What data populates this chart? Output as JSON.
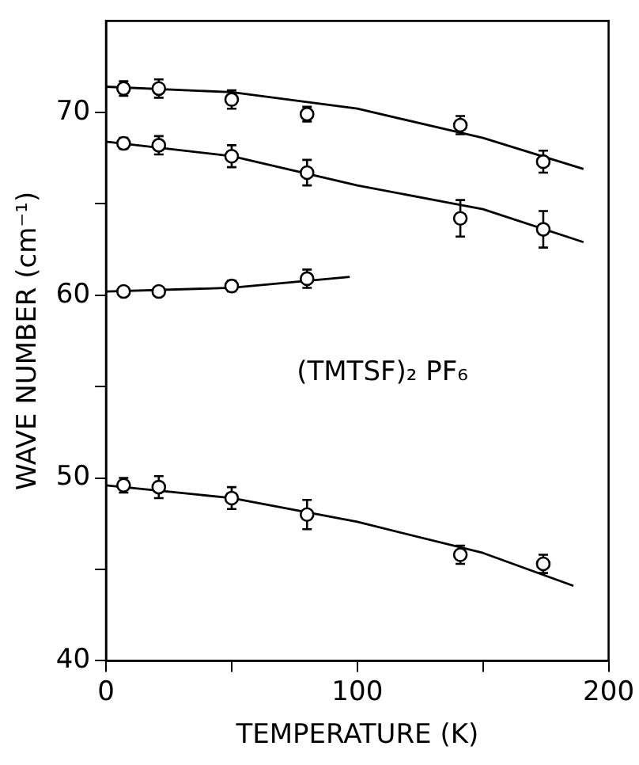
{
  "chart_data": {
    "type": "scatter",
    "xlabel": "TEMPERATURE (K)",
    "ylabel": "WAVE NUMBER (cm⁻¹)",
    "annotations": [
      "(TMTSF)₂ PF₆"
    ],
    "xlim": [
      0,
      200
    ],
    "xticks": [
      0,
      {
        "value": 50,
        "label": null
      },
      100,
      {
        "value": 150,
        "label": null
      },
      200
    ],
    "ylim": [
      40,
      75
    ],
    "yticks": [
      40,
      {
        "value": 45,
        "label": null
      },
      50,
      {
        "value": 55,
        "label": null
      },
      60,
      {
        "value": 65,
        "label": null
      },
      70
    ],
    "grid": false,
    "legend": false,
    "marker": "circle",
    "series": [
      {
        "color": "#000000",
        "x": [
          7,
          21,
          50,
          80,
          141,
          174
        ],
        "values": [
          71.3,
          71.3,
          70.7,
          69.9,
          69.3,
          67.3
        ],
        "errors": [
          0.4,
          0.5,
          0.5,
          0.4,
          0.5,
          0.6
        ]
      },
      {
        "color": "#000000",
        "x": [
          7,
          21,
          50,
          80,
          141,
          174
        ],
        "values": [
          68.3,
          68.2,
          67.6,
          66.7,
          64.2,
          63.6
        ],
        "errors": [
          0.3,
          0.5,
          0.6,
          0.7,
          1.0,
          1.0
        ]
      },
      {
        "color": "#000000",
        "x": [
          7,
          21,
          50,
          80
        ],
        "values": [
          60.2,
          60.2,
          60.5,
          60.9
        ],
        "errors": [
          null,
          null,
          0.3,
          0.5
        ]
      },
      {
        "color": "#000000",
        "x": [
          7,
          21,
          50,
          80,
          141,
          174
        ],
        "values": [
          49.6,
          49.5,
          48.9,
          48.0,
          45.8,
          45.3
        ],
        "errors": [
          0.4,
          0.6,
          0.6,
          0.8,
          0.5,
          0.5
        ]
      },
      {
        "type": "line",
        "color": "#000000",
        "marker": "none",
        "x": [
          0,
          50,
          100,
          150,
          190
        ],
        "values": [
          71.4,
          71.1,
          70.2,
          68.6,
          66.9
        ]
      },
      {
        "type": "line",
        "color": "#000000",
        "marker": "none",
        "x": [
          0,
          50,
          100,
          150,
          190
        ],
        "values": [
          68.4,
          67.6,
          66.0,
          64.7,
          62.9
        ]
      },
      {
        "type": "line",
        "color": "#000000",
        "marker": "none",
        "x": [
          0,
          50,
          97
        ],
        "values": [
          60.2,
          60.4,
          61.0
        ]
      },
      {
        "type": "line",
        "color": "#000000",
        "marker": "none",
        "x": [
          0,
          50,
          100,
          150,
          186
        ],
        "values": [
          49.6,
          48.9,
          47.6,
          45.9,
          44.1
        ]
      }
    ]
  }
}
